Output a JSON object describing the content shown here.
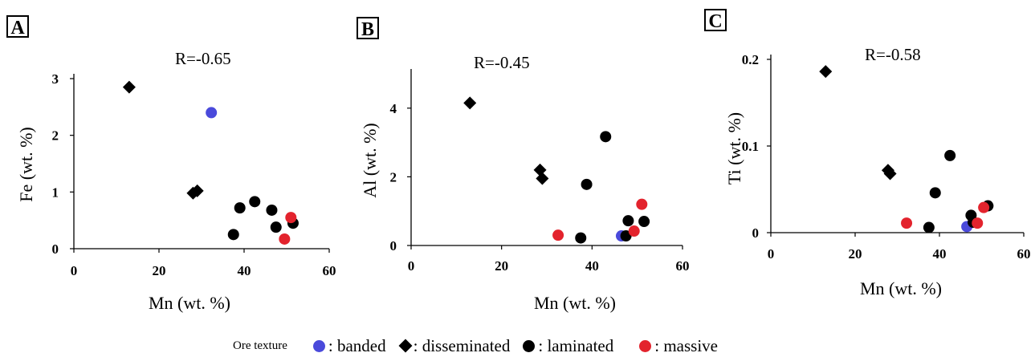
{
  "legend": {
    "title": "Ore texture",
    "items": [
      {
        "label": ": banded",
        "symbol": "circle",
        "color": "#4a4adb"
      },
      {
        "label": ": disseminated",
        "symbol": "diamond",
        "color": "#000000"
      },
      {
        "label": ": laminated",
        "symbol": "circle",
        "color": "#000000"
      },
      {
        "label": ": massive",
        "symbol": "circle",
        "color": "#e3232d"
      }
    ]
  },
  "colors": {
    "banded": "#4a4adb",
    "disseminated": "#000000",
    "laminated": "#000000",
    "massive": "#e3232d"
  },
  "chart_data": [
    {
      "type": "scatter",
      "panel_label": "A",
      "annotation": "R=-0.65",
      "xlabel": "Mn (wt. %)",
      "ylabel": "Fe (wt. %)",
      "xlim": [
        0,
        60
      ],
      "ylim": [
        0,
        3
      ],
      "xticks": [
        "0",
        "20",
        "40",
        "60"
      ],
      "yticks": [
        "0",
        "1",
        "2",
        "3"
      ],
      "series": [
        {
          "name": "banded",
          "marker": "circle",
          "color": "#4a4adb",
          "x": [
            32.3
          ],
          "y": [
            2.4
          ]
        },
        {
          "name": "disseminated",
          "marker": "diamond",
          "color": "#000000",
          "x": [
            13,
            28,
            29
          ],
          "y": [
            2.85,
            0.98,
            1.02
          ]
        },
        {
          "name": "laminated",
          "marker": "circle",
          "color": "#000000",
          "x": [
            37.5,
            39,
            42.5,
            46.5,
            47.5,
            51.5
          ],
          "y": [
            0.25,
            0.72,
            0.83,
            0.68,
            0.38,
            0.45
          ]
        },
        {
          "name": "massive",
          "marker": "circle",
          "color": "#e3232d",
          "x": [
            49.5,
            51
          ],
          "y": [
            0.17,
            0.55
          ]
        }
      ]
    },
    {
      "type": "scatter",
      "panel_label": "B",
      "annotation": "R=-0.45",
      "xlabel": "Mn (wt. %)",
      "ylabel": "Al (wt. %)",
      "xlim": [
        0,
        60
      ],
      "ylim": [
        0,
        5
      ],
      "xticks": [
        "0",
        "20",
        "40",
        "60"
      ],
      "yticks": [
        "0",
        "2",
        "4"
      ],
      "series": [
        {
          "name": "banded",
          "marker": "circle",
          "color": "#4a4adb",
          "x": [
            46.5
          ],
          "y": [
            0.28
          ]
        },
        {
          "name": "disseminated",
          "marker": "diamond",
          "color": "#000000",
          "x": [
            13,
            28.5,
            29
          ],
          "y": [
            4.15,
            2.2,
            1.95
          ]
        },
        {
          "name": "laminated",
          "marker": "circle",
          "color": "#000000",
          "x": [
            37.5,
            38.8,
            43,
            47.5,
            48,
            51.5
          ],
          "y": [
            0.22,
            1.78,
            3.17,
            0.28,
            0.72,
            0.7
          ]
        },
        {
          "name": "massive",
          "marker": "circle",
          "color": "#e3232d",
          "x": [
            32.5,
            49.3,
            51
          ],
          "y": [
            0.3,
            0.42,
            1.2
          ]
        }
      ]
    },
    {
      "type": "scatter",
      "panel_label": "C",
      "annotation": "R=-0.58",
      "xlabel": "Mn (wt. %)",
      "ylabel": "Ti (wt. %)",
      "xlim": [
        0,
        60
      ],
      "ylim": [
        0,
        0.2
      ],
      "xticks": [
        "0",
        "20",
        "40",
        "60"
      ],
      "yticks": [
        "0",
        "0.1",
        "0.2"
      ],
      "series": [
        {
          "name": "banded",
          "marker": "circle",
          "color": "#4a4adb",
          "x": [
            46.5
          ],
          "y": [
            0.007
          ]
        },
        {
          "name": "disseminated",
          "marker": "diamond",
          "color": "#000000",
          "x": [
            13,
            27.8,
            28.3
          ],
          "y": [
            0.186,
            0.072,
            0.068
          ]
        },
        {
          "name": "laminated",
          "marker": "circle",
          "color": "#000000",
          "x": [
            37.5,
            39,
            42.5,
            47.5,
            48,
            51.5
          ],
          "y": [
            0.006,
            0.046,
            0.089,
            0.02,
            0.012,
            0.031
          ]
        },
        {
          "name": "massive",
          "marker": "circle",
          "color": "#e3232d",
          "x": [
            32.2,
            49,
            50.5
          ],
          "y": [
            0.011,
            0.011,
            0.029
          ]
        }
      ]
    }
  ]
}
